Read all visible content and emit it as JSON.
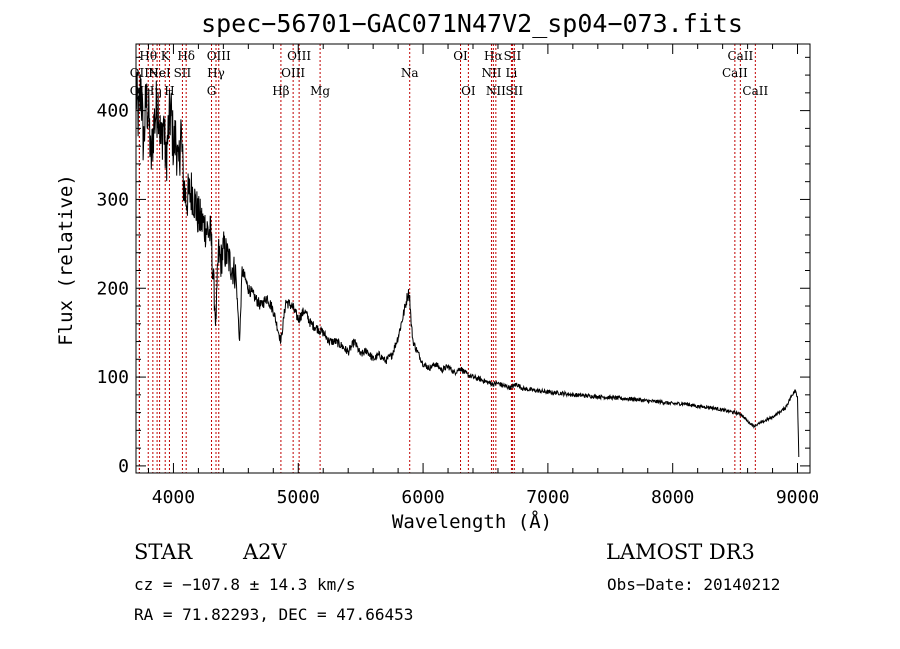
{
  "chart_data": {
    "type": "line",
    "title": "spec−56701−GAC071N47V2_sp04−073.fits",
    "xlabel": "Wavelength (Å)",
    "ylabel": "Flux (relative)",
    "xlim": [
      3700,
      9100
    ],
    "ylim": [
      -8,
      475
    ],
    "xticks": [
      4000,
      5000,
      6000,
      7000,
      8000,
      9000
    ],
    "yticks": [
      0,
      100,
      200,
      300,
      400
    ],
    "series": [
      {
        "name": "spectrum",
        "x": [
          3700,
          3720,
          3740,
          3760,
          3780,
          3800,
          3820,
          3840,
          3860,
          3880,
          3900,
          3920,
          3940,
          3960,
          3980,
          4000,
          4020,
          4040,
          4060,
          4080,
          4100,
          4150,
          4200,
          4250,
          4300,
          4340,
          4360,
          4380,
          4400,
          4450,
          4500,
          4530,
          4550,
          4600,
          4650,
          4700,
          4750,
          4800,
          4861,
          4900,
          4950,
          5000,
          5050,
          5100,
          5150,
          5200,
          5250,
          5300,
          5350,
          5400,
          5450,
          5500,
          5550,
          5600,
          5650,
          5700,
          5750,
          5800,
          5850,
          5880,
          5893,
          5905,
          5920,
          5950,
          6000,
          6050,
          6100,
          6150,
          6200,
          6250,
          6300,
          6350,
          6400,
          6450,
          6500,
          6563,
          6600,
          6650,
          6700,
          6750,
          6800,
          6900,
          7000,
          7100,
          7200,
          7300,
          7400,
          7500,
          7600,
          7700,
          7800,
          7900,
          8000,
          8100,
          8200,
          8300,
          8400,
          8500,
          8550,
          8600,
          8650,
          8700,
          8800,
          8900,
          8950,
          8980,
          9000,
          9010
        ],
        "y": [
          420,
          390,
          430,
          360,
          410,
          400,
          340,
          380,
          400,
          410,
          360,
          390,
          340,
          380,
          400,
          360,
          370,
          330,
          380,
          320,
          300,
          310,
          280,
          270,
          260,
          160,
          240,
          230,
          245,
          230,
          215,
          140,
          220,
          200,
          190,
          180,
          190,
          175,
          140,
          185,
          180,
          165,
          175,
          160,
          155,
          150,
          140,
          140,
          135,
          128,
          140,
          125,
          130,
          120,
          125,
          118,
          125,
          145,
          175,
          195,
          190,
          160,
          140,
          130,
          115,
          110,
          115,
          108,
          112,
          105,
          110,
          103,
          100,
          98,
          95,
          92,
          93,
          90,
          88,
          92,
          87,
          85,
          83,
          82,
          80,
          79,
          78,
          77,
          76,
          75,
          73,
          72,
          70,
          70,
          67,
          66,
          63,
          60,
          58,
          50,
          45,
          48,
          55,
          65,
          78,
          86,
          78,
          10
        ]
      }
    ],
    "spectral_lines": [
      {
        "label": "OII",
        "wavelength": 3727,
        "row": 2
      },
      {
        "label": "Hθ",
        "wavelength": 3798,
        "row": 0
      },
      {
        "label": "OII",
        "wavelength": 3727,
        "row": 1
      },
      {
        "label": "Ne",
        "wavelength": 3869,
        "row": 1
      },
      {
        "label": "Hη",
        "wavelength": 3835,
        "row": 2
      },
      {
        "label": "HeI",
        "wavelength": 3889,
        "row": 1
      },
      {
        "label": "K",
        "wavelength": 3934,
        "row": 0
      },
      {
        "label": "H",
        "wavelength": 3968,
        "row": 2
      },
      {
        "label": "SII",
        "wavelength": 4072,
        "row": 1
      },
      {
        "label": "Hδ",
        "wavelength": 4102,
        "row": 0
      },
      {
        "label": "OIII",
        "wavelength": 4363,
        "row": 0
      },
      {
        "label": "Hγ",
        "wavelength": 4341,
        "row": 1
      },
      {
        "label": "G",
        "wavelength": 4305,
        "row": 2
      },
      {
        "label": "Hβ",
        "wavelength": 4861,
        "row": 2
      },
      {
        "label": "OIII",
        "wavelength": 5007,
        "row": 0
      },
      {
        "label": "OIII",
        "wavelength": 4959,
        "row": 1
      },
      {
        "label": "Mg",
        "wavelength": 5175,
        "row": 2
      },
      {
        "label": "Na",
        "wavelength": 5893,
        "row": 1
      },
      {
        "label": "OI",
        "wavelength": 6300,
        "row": 0
      },
      {
        "label": "OI",
        "wavelength": 6363,
        "row": 2
      },
      {
        "label": "Hα",
        "wavelength": 6563,
        "row": 0
      },
      {
        "label": "NII",
        "wavelength": 6548,
        "row": 1
      },
      {
        "label": "NII",
        "wavelength": 6583,
        "row": 2
      },
      {
        "label": "SII",
        "wavelength": 6716,
        "row": 0
      },
      {
        "label": "Li",
        "wavelength": 6708,
        "row": 1
      },
      {
        "label": "SII",
        "wavelength": 6731,
        "row": 2
      },
      {
        "label": "CaII",
        "wavelength": 8542,
        "row": 0
      },
      {
        "label": "CaII",
        "wavelength": 8498,
        "row": 1
      },
      {
        "label": "CaII",
        "wavelength": 8662,
        "row": 2
      }
    ]
  },
  "info": {
    "class": "STAR",
    "subclass": "A2V",
    "survey": "LAMOST DR3",
    "cz": "cz = −107.8 ± 14.3 km/s",
    "obs_date": "Obs−Date: 20140212",
    "radec": "RA =  71.82293, DEC =  47.66453"
  },
  "colors": {
    "spectrum": "#000000",
    "line_marker": "#c00000",
    "axes": "#000000"
  }
}
